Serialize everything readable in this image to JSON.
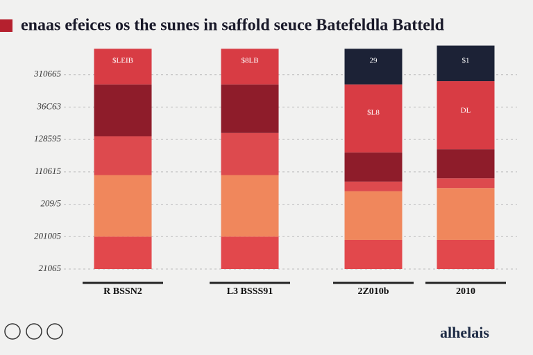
{
  "chart_data": {
    "type": "stacked-bar",
    "title": "enaas efeices os the sunes in saffold seuce Batefeldla Batteld",
    "categories": [
      "R BSSN2",
      "L3 BSSS91",
      "2Z010b",
      "2010"
    ],
    "series": [
      {
        "color": "#e2484c",
        "values": [
          1.0,
          1.0,
          0.9,
          0.9
        ]
      },
      {
        "color": "#f0875c",
        "values": [
          1.9,
          1.9,
          1.5,
          1.6
        ]
      },
      {
        "color": "#dd4a4e",
        "values": [
          1.2,
          1.3,
          0.3,
          0.3
        ]
      },
      {
        "color": "#8e1c2a",
        "values": [
          1.6,
          1.5,
          0.9,
          0.9
        ]
      },
      {
        "color": "#d83c44",
        "values": [
          1.1,
          1.1,
          2.1,
          2.1
        ]
      },
      {
        "color": "#1c2236",
        "values": [
          0,
          0,
          1.1,
          1.1
        ]
      }
    ],
    "annotations": [
      "$LEIB",
      "$8LB",
      "29",
      "$1",
      "$L8",
      "DL"
    ],
    "ylim": [
      0,
      7
    ],
    "yticks": [
      {
        "value": 0,
        "label": "21065"
      },
      {
        "value": 1,
        "label": "201005"
      },
      {
        "value": 2,
        "label": "209/5"
      },
      {
        "value": 3,
        "label": "110615"
      },
      {
        "value": 4,
        "label": "128595"
      },
      {
        "value": 5,
        "label": "36C63"
      },
      {
        "value": 6,
        "label": "310665"
      }
    ],
    "grid": true,
    "footer": "alhelais"
  }
}
